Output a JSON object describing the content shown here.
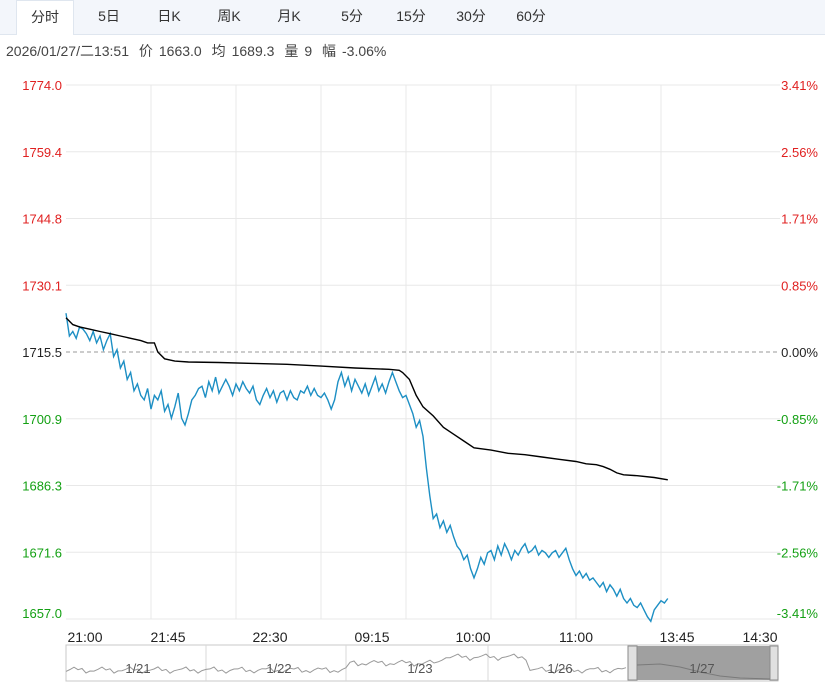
{
  "tabs": [
    "分时",
    "5日",
    "日K",
    "周K",
    "月K",
    "5分",
    "15分",
    "30分",
    "60分"
  ],
  "active_tab": "分时",
  "info": {
    "datetime": "2026/01/27/二13:51",
    "price_label": "价",
    "price": "1663.0",
    "avg_label": "均",
    "avg": "1689.3",
    "vol_label": "量",
    "vol": "9",
    "amp_label": "幅",
    "amp": "-3.06%"
  },
  "colors": {
    "up": "#e02020",
    "down": "#13a013",
    "price_line": "#1d8fc4",
    "avg_line": "#000000",
    "grid": "#e8e8e8"
  },
  "chart_data": {
    "type": "line",
    "title": "",
    "ylim": [
      1657.0,
      1774.0
    ],
    "prev_close": 1715.5,
    "yticks_left": [
      "1774.0",
      "1759.4",
      "1744.8",
      "1730.1",
      "1715.5",
      "1700.9",
      "1686.3",
      "1671.6",
      "1657.0"
    ],
    "yticks_right": [
      "3.41%",
      "2.56%",
      "1.71%",
      "0.85%",
      "0.00%",
      "-0.85%",
      "-1.71%",
      "-2.56%",
      "-3.41%"
    ],
    "xticks": [
      "21:00",
      "21:45",
      "22:30",
      "09:15",
      "10:00",
      "11:00",
      "13:45",
      "14:30"
    ],
    "series": [
      {
        "values": [
          [
            0,
            1724.0
          ],
          [
            2,
            1719.0
          ],
          [
            4,
            1720.0
          ],
          [
            6,
            1718.5
          ],
          [
            8,
            1721.0
          ],
          [
            10,
            1720.5
          ],
          [
            12,
            1719.5
          ],
          [
            14,
            1718.0
          ],
          [
            16,
            1720.0
          ],
          [
            18,
            1717.5
          ],
          [
            20,
            1719.0
          ],
          [
            22,
            1716.0
          ],
          [
            24,
            1718.0
          ],
          [
            26,
            1719.5
          ],
          [
            28,
            1714.5
          ],
          [
            30,
            1716.0
          ],
          [
            32,
            1712.0
          ],
          [
            34,
            1713.5
          ],
          [
            36,
            1709.5
          ],
          [
            38,
            1711.0
          ],
          [
            40,
            1707.0
          ],
          [
            42,
            1708.5
          ],
          [
            44,
            1706.0
          ],
          [
            46,
            1705.0
          ],
          [
            48,
            1707.5
          ],
          [
            50,
            1703.0
          ],
          [
            52,
            1706.0
          ],
          [
            54,
            1705.0
          ],
          [
            56,
            1707.0
          ],
          [
            58,
            1702.5
          ],
          [
            60,
            1704.0
          ],
          [
            62,
            1701.0
          ],
          [
            64,
            1703.5
          ],
          [
            66,
            1706.5
          ],
          [
            68,
            1701.0
          ],
          [
            70,
            1699.5
          ],
          [
            72,
            1702.0
          ],
          [
            74,
            1705.0
          ],
          [
            76,
            1706.0
          ],
          [
            78,
            1707.5
          ],
          [
            80,
            1708.0
          ],
          [
            82,
            1705.5
          ],
          [
            84,
            1709.0
          ],
          [
            86,
            1707.0
          ],
          [
            88,
            1710.0
          ],
          [
            90,
            1706.5
          ],
          [
            92,
            1708.0
          ],
          [
            94,
            1709.5
          ],
          [
            96,
            1708.0
          ],
          [
            98,
            1706.0
          ],
          [
            100,
            1708.5
          ],
          [
            102,
            1707.0
          ],
          [
            104,
            1709.0
          ],
          [
            106,
            1707.5
          ],
          [
            108,
            1706.5
          ],
          [
            110,
            1708.0
          ],
          [
            112,
            1705.0
          ],
          [
            114,
            1704.0
          ],
          [
            116,
            1706.0
          ],
          [
            118,
            1707.5
          ],
          [
            120,
            1705.5
          ],
          [
            122,
            1707.0
          ],
          [
            124,
            1704.5
          ],
          [
            126,
            1706.5
          ],
          [
            128,
            1707.0
          ],
          [
            130,
            1705.0
          ],
          [
            132,
            1707.0
          ],
          [
            134,
            1705.5
          ],
          [
            136,
            1705.0
          ],
          [
            138,
            1707.0
          ],
          [
            140,
            1706.5
          ],
          [
            142,
            1708.0
          ],
          [
            144,
            1706.0
          ],
          [
            146,
            1707.5
          ],
          [
            148,
            1706.0
          ],
          [
            150,
            1705.5
          ],
          [
            152,
            1706.5
          ],
          [
            154,
            1705.0
          ],
          [
            156,
            1703.0
          ],
          [
            158,
            1705.0
          ],
          [
            160,
            1709.0
          ],
          [
            162,
            1711.0
          ],
          [
            164,
            1708.0
          ],
          [
            166,
            1710.0
          ],
          [
            168,
            1707.0
          ],
          [
            170,
            1709.5
          ],
          [
            172,
            1708.0
          ],
          [
            174,
            1706.5
          ],
          [
            176,
            1708.5
          ],
          [
            178,
            1706.0
          ],
          [
            180,
            1708.0
          ],
          [
            182,
            1710.0
          ],
          [
            184,
            1707.0
          ],
          [
            186,
            1708.5
          ],
          [
            188,
            1706.5
          ],
          [
            190,
            1709.0
          ],
          [
            192,
            1711.0
          ],
          [
            194,
            1709.0
          ],
          [
            196,
            1707.0
          ],
          [
            198,
            1705.5
          ],
          [
            200,
            1706.0
          ],
          [
            202,
            1704.0
          ],
          [
            204,
            1702.0
          ],
          [
            206,
            1699.0
          ],
          [
            208,
            1700.5
          ],
          [
            210,
            1697.0
          ],
          [
            212,
            1690.0
          ],
          [
            214,
            1684.0
          ],
          [
            216,
            1679.0
          ],
          [
            218,
            1680.0
          ],
          [
            220,
            1677.0
          ],
          [
            222,
            1678.5
          ],
          [
            224,
            1676.0
          ],
          [
            226,
            1677.5
          ],
          [
            228,
            1675.0
          ],
          [
            230,
            1673.0
          ],
          [
            232,
            1672.0
          ],
          [
            234,
            1670.0
          ],
          [
            236,
            1671.0
          ],
          [
            238,
            1668.0
          ],
          [
            240,
            1666.0
          ],
          [
            242,
            1668.0
          ],
          [
            244,
            1670.5
          ],
          [
            246,
            1669.0
          ],
          [
            248,
            1671.5
          ],
          [
            250,
            1672.0
          ],
          [
            252,
            1670.0
          ],
          [
            254,
            1673.0
          ],
          [
            256,
            1671.0
          ],
          [
            258,
            1673.5
          ],
          [
            260,
            1672.0
          ],
          [
            262,
            1670.0
          ],
          [
            264,
            1672.0
          ],
          [
            266,
            1671.0
          ],
          [
            268,
            1672.5
          ],
          [
            270,
            1673.5
          ],
          [
            272,
            1671.5
          ],
          [
            274,
            1672.0
          ],
          [
            276,
            1673.0
          ],
          [
            278,
            1671.0
          ],
          [
            280,
            1672.0
          ],
          [
            282,
            1671.5
          ],
          [
            284,
            1670.5
          ],
          [
            286,
            1671.5
          ],
          [
            288,
            1672.0
          ],
          [
            290,
            1670.5
          ],
          [
            292,
            1671.5
          ],
          [
            294,
            1672.5
          ],
          [
            296,
            1670.0
          ],
          [
            298,
            1668.0
          ],
          [
            300,
            1666.5
          ],
          [
            302,
            1667.5
          ],
          [
            304,
            1666.0
          ],
          [
            306,
            1667.0
          ],
          [
            308,
            1665.5
          ],
          [
            310,
            1666.0
          ],
          [
            312,
            1665.0
          ],
          [
            314,
            1664.0
          ],
          [
            316,
            1665.0
          ],
          [
            318,
            1663.0
          ],
          [
            320,
            1664.5
          ],
          [
            322,
            1663.5
          ],
          [
            324,
            1662.0
          ],
          [
            326,
            1663.5
          ],
          [
            328,
            1661.5
          ],
          [
            330,
            1660.5
          ],
          [
            332,
            1661.5
          ],
          [
            334,
            1660.0
          ],
          [
            336,
            1659.5
          ],
          [
            338,
            1660.5
          ],
          [
            340,
            1659.0
          ],
          [
            342,
            1657.5
          ],
          [
            344,
            1656.5
          ],
          [
            346,
            1659.0
          ],
          [
            348,
            1660.0
          ],
          [
            350,
            1661.0
          ],
          [
            352,
            1660.5
          ],
          [
            354,
            1661.5
          ]
        ]
      },
      {
        "values": [
          [
            0,
            1723.0
          ],
          [
            4,
            1721.5
          ],
          [
            8,
            1721.0
          ],
          [
            14,
            1720.5
          ],
          [
            20,
            1720.0
          ],
          [
            26,
            1719.5
          ],
          [
            32,
            1719.0
          ],
          [
            38,
            1718.5
          ],
          [
            44,
            1718.0
          ],
          [
            48,
            1717.5
          ],
          [
            52,
            1717.5
          ],
          [
            54,
            1715.5
          ],
          [
            58,
            1714.0
          ],
          [
            64,
            1713.5
          ],
          [
            72,
            1713.3
          ],
          [
            90,
            1713.2
          ],
          [
            110,
            1713.0
          ],
          [
            130,
            1712.8
          ],
          [
            150,
            1712.4
          ],
          [
            170,
            1712.0
          ],
          [
            190,
            1711.7
          ],
          [
            196,
            1711.5
          ],
          [
            198,
            1711.0
          ],
          [
            202,
            1709.5
          ],
          [
            206,
            1706.0
          ],
          [
            210,
            1703.5
          ],
          [
            216,
            1701.5
          ],
          [
            222,
            1699.0
          ],
          [
            228,
            1697.5
          ],
          [
            234,
            1696.0
          ],
          [
            240,
            1694.5
          ],
          [
            250,
            1694.0
          ],
          [
            260,
            1693.3
          ],
          [
            270,
            1693.0
          ],
          [
            280,
            1692.5
          ],
          [
            290,
            1692.0
          ],
          [
            300,
            1691.5
          ],
          [
            306,
            1691.0
          ],
          [
            312,
            1690.8
          ],
          [
            316,
            1690.4
          ],
          [
            320,
            1689.8
          ],
          [
            324,
            1689.0
          ],
          [
            328,
            1688.6
          ],
          [
            336,
            1688.4
          ],
          [
            346,
            1688.0
          ],
          [
            354,
            1687.5
          ]
        ]
      }
    ]
  },
  "navigator": {
    "labels": [
      "1/21",
      "1/22",
      "1/23",
      "1/26",
      "1/27"
    ]
  }
}
